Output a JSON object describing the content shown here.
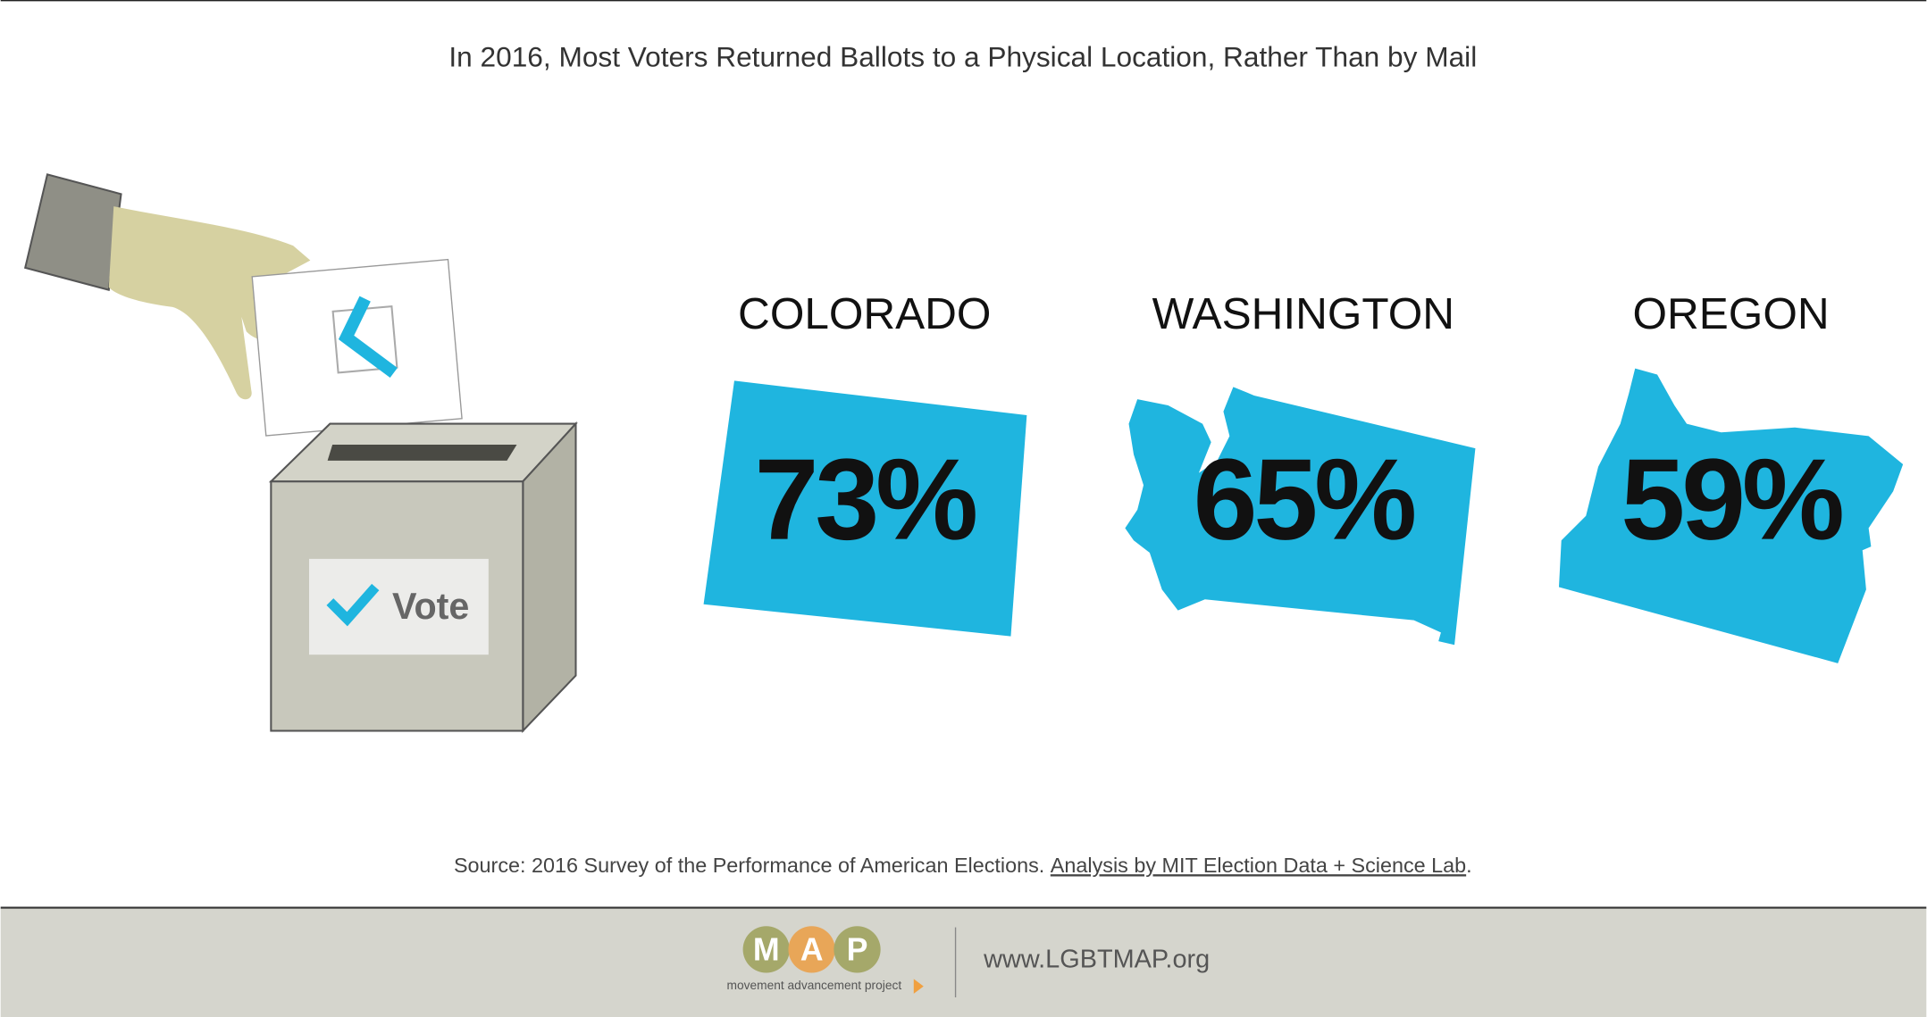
{
  "chart_data": {
    "type": "state-share",
    "title": "In 2016, Most Voters Returned Ballots to a Physical Location, Rather Than by Mail",
    "categories": [
      "COLORADO",
      "WASHINGTON",
      "OREGON"
    ],
    "values": [
      73,
      65,
      59
    ],
    "value_labels": [
      "73%",
      "65%",
      "59%"
    ],
    "color": "#1fb5df"
  },
  "illustration": {
    "label": "Vote"
  },
  "source": {
    "text": "Source: 2016 Survey of the Performance of American Elections. ",
    "link": "Analysis by MIT Election Data + Science Lab",
    "end": "."
  },
  "footer": {
    "logo_letters": [
      "M",
      "A",
      "P"
    ],
    "tagline": "movement advancement project",
    "website": "www.LGBTMAP.org"
  }
}
